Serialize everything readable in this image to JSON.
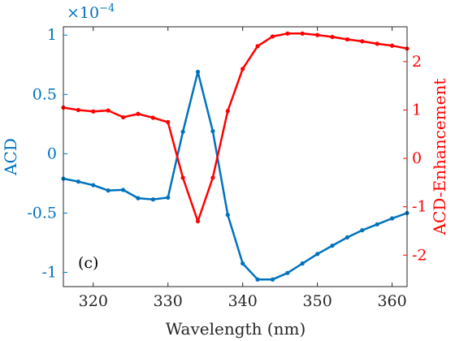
{
  "chart_data": {
    "type": "line",
    "xlabel": "Wavelength (nm)",
    "xlim": [
      316,
      362
    ],
    "x_ticks": [
      320,
      330,
      340,
      350,
      360
    ],
    "left_axis": {
      "label": "ACD",
      "exponent_label": "×10",
      "exponent_power": "−4",
      "ylim": [
        -1.12,
        1.07
      ],
      "ticks": [
        1,
        0.5,
        0,
        -0.5,
        -1
      ],
      "tick_labels": [
        "1",
        "0.5",
        "0",
        "-0.5",
        "-1"
      ],
      "color": "#0072BD"
    },
    "right_axis": {
      "label": "ACD-Enhancement",
      "ylim": [
        -2.65,
        2.72
      ],
      "ticks": [
        2,
        1,
        0,
        -1,
        -2
      ],
      "tick_labels": [
        "2",
        "1",
        "0",
        "-1",
        "-2"
      ],
      "color": "#FF0000"
    },
    "annotation": "(c)",
    "x": [
      316,
      318,
      320,
      322,
      324,
      326,
      328,
      330,
      332,
      334,
      336,
      338,
      340,
      342,
      344,
      346,
      348,
      350,
      352,
      354,
      356,
      358,
      360,
      362
    ],
    "series": [
      {
        "axis": "left",
        "color": "#0072BD",
        "values": [
          -0.21,
          -0.235,
          -0.265,
          -0.31,
          -0.305,
          -0.375,
          -0.385,
          -0.37,
          0.185,
          0.69,
          0.19,
          -0.515,
          -0.925,
          -1.06,
          -1.06,
          -1.005,
          -0.925,
          -0.845,
          -0.775,
          -0.705,
          -0.645,
          -0.595,
          -0.545,
          -0.5
        ]
      },
      {
        "axis": "right",
        "color": "#FF0000",
        "values": [
          1.05,
          1.0,
          0.97,
          0.99,
          0.85,
          0.92,
          0.84,
          0.75,
          -0.4,
          -1.3,
          -0.4,
          0.98,
          1.85,
          2.32,
          2.52,
          2.58,
          2.58,
          2.55,
          2.51,
          2.46,
          2.42,
          2.37,
          2.33,
          2.27
        ]
      }
    ]
  }
}
